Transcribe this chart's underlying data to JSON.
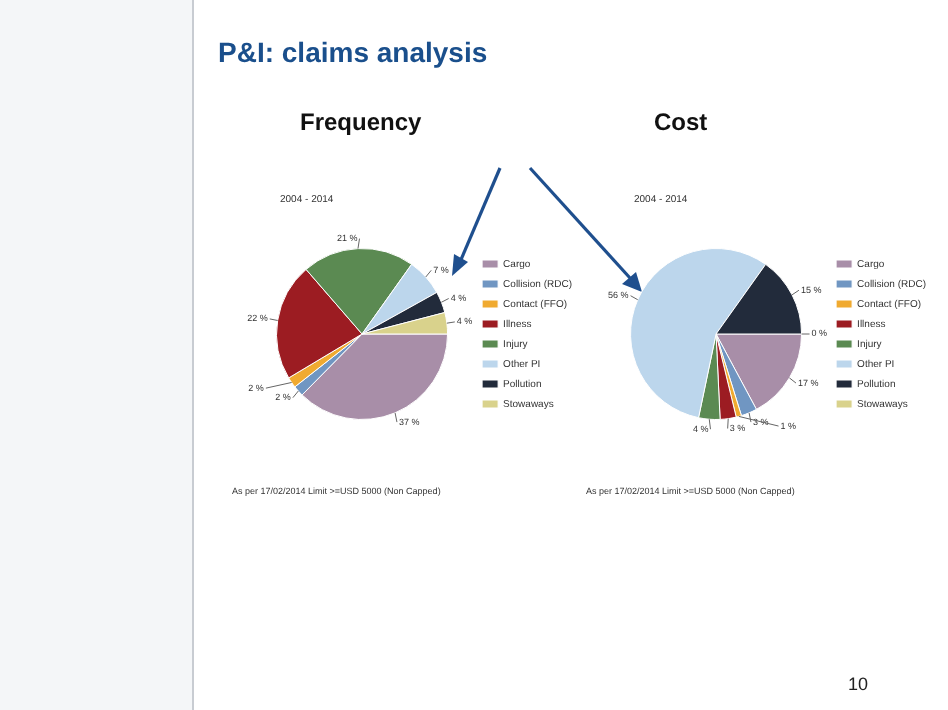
{
  "chart_data": [
    {
      "type": "other",
      "title": "P&I: claims analysis",
      "annotations": [
        "10"
      ]
    },
    {
      "type": "pie",
      "title": "Frequency",
      "subtitle": "2004 - 2014",
      "legend": "right",
      "categories": [
        "Cargo",
        "Collision (RDC)",
        "Contact (FFO)",
        "Illness",
        "Injury",
        "Other PI",
        "Pollution",
        "Stowaways"
      ],
      "values": [
        37,
        2,
        2,
        22,
        21,
        7,
        4,
        4
      ],
      "value_labels": [
        "37 %",
        "2 %",
        "2 %",
        "22 %",
        "21 %",
        "7 %",
        "4 %",
        "4 %"
      ],
      "colors": [
        "#a88ea8",
        "#7096c2",
        "#f0aa30",
        "#9c1c22",
        "#5b8a52",
        "#bcd6ec",
        "#222b3b",
        "#d9d28c"
      ],
      "annotations": [
        "As per 17/02/2014 Limit >=USD 5000 (Non Capped)"
      ]
    },
    {
      "type": "pie",
      "title": "Cost",
      "subtitle": "2004 - 2014",
      "legend": "right",
      "categories": [
        "Cargo",
        "Collision (RDC)",
        "Contact (FFO)",
        "Illness",
        "Injury",
        "Other PI",
        "Pollution",
        "Stowaways"
      ],
      "values": [
        17,
        3,
        1,
        3,
        4,
        56,
        15,
        0
      ],
      "value_labels": [
        "17 %",
        "3 %",
        "1 %",
        "3 %",
        "4 %",
        "56 %",
        "15 %",
        "0 %"
      ],
      "colors": [
        "#a88ea8",
        "#7096c2",
        "#f0aa30",
        "#9c1c22",
        "#5b8a52",
        "#bcd6ec",
        "#222b3b",
        "#d9d28c"
      ],
      "annotations": [
        "As per 17/02/2014 Limit >=USD 5000 (Non Capped)"
      ]
    }
  ]
}
